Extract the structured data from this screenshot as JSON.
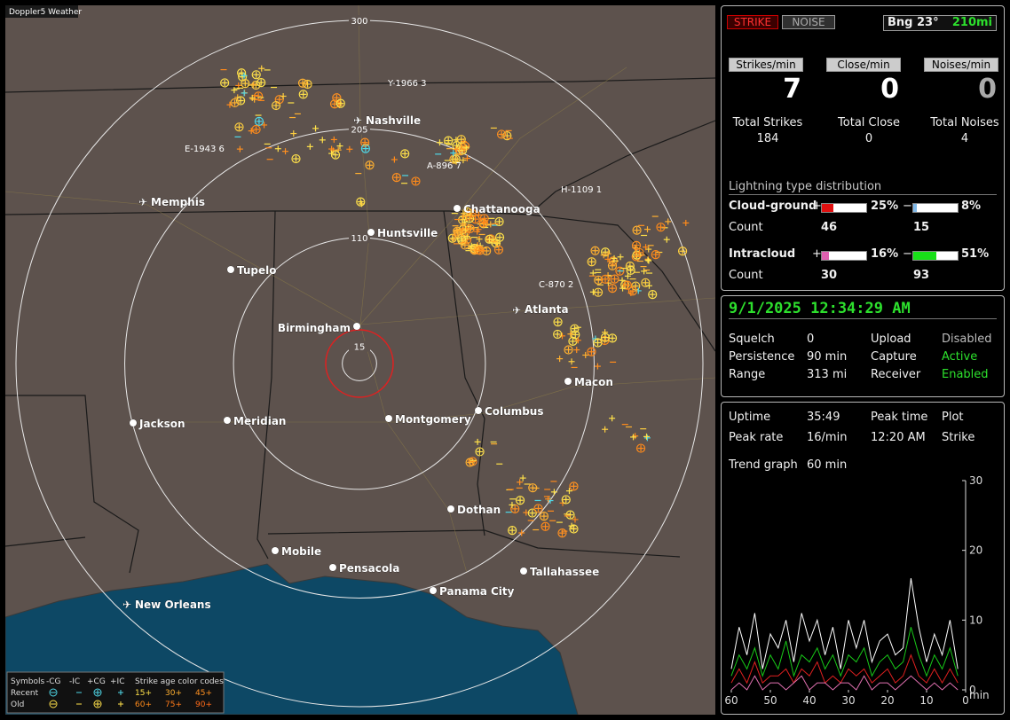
{
  "map": {
    "title": "Doppler5 Weather",
    "rings": [
      15,
      110,
      205,
      300
    ],
    "cities": [
      "Nashville",
      "Memphis",
      "Chattanooga",
      "Huntsville",
      "Tupelo",
      "Atlanta",
      "Birmingham",
      "Macon",
      "Montgomery",
      "Columbus",
      "Jackson",
      "Meridian",
      "Dothan",
      "Mobile",
      "Pensacola",
      "Tallahassee",
      "Panama City",
      "New Orleans"
    ],
    "storms": [
      "Y-1966 3",
      "E-1943 6",
      "A-896 7",
      "H-1109 1",
      "C-870 2"
    ],
    "legend": {
      "symbols": "Symbols",
      "neg_cg": "-CG",
      "neg_ic": "-IC",
      "pos_cg": "+CG",
      "pos_ic": "+IC",
      "age_title": "Strike age color codes",
      "recent": "Recent",
      "old": "Old",
      "ages": [
        "15+",
        "30+",
        "45+",
        "60+",
        "75+",
        "90+"
      ]
    }
  },
  "panel": {
    "strike_button": "STRIKE",
    "noise_button": "NOISE",
    "bearing": "Bng 23°",
    "distance": "210mi",
    "rates": [
      {
        "label": "Strikes/min",
        "value": 7
      },
      {
        "label": "Close/min",
        "value": 0
      },
      {
        "label": "Noises/min",
        "value": 0
      }
    ],
    "totals": [
      {
        "label": "Total Strikes",
        "value": 184
      },
      {
        "label": "Total Close",
        "value": 0
      },
      {
        "label": "Total Noises",
        "value": 4
      }
    ],
    "distribution": {
      "title": "Lightning type distribution",
      "count_label": "Count",
      "rows": [
        {
          "label": "Cloud-ground",
          "plus": "+",
          "minus": "−",
          "pos": {
            "value": 25,
            "label": "25%"
          },
          "neg": {
            "value": 8,
            "label": "8%"
          },
          "pos_count": 46,
          "neg_count": 15
        },
        {
          "label": "Intracloud",
          "plus": "+",
          "minus": "−",
          "pos": {
            "value": 16,
            "label": "16%"
          },
          "neg": {
            "value": 51,
            "label": "51%"
          },
          "pos_count": 30,
          "neg_count": 93
        }
      ]
    },
    "datetime": "9/1/2025 12:34:29 AM",
    "settings": [
      [
        "Squelch",
        "0",
        "Upload",
        "Disabled"
      ],
      [
        "Persistence",
        "90 min",
        "Capture",
        "Active"
      ],
      [
        "Range",
        "313 mi",
        "Receiver",
        "Enabled"
      ]
    ],
    "stats": [
      [
        "Uptime",
        "35:49",
        "Peak time",
        "Plot"
      ],
      [
        "Peak rate",
        "16/min",
        "12:20 AM",
        "Strike"
      ]
    ],
    "trend_label": "Trend graph",
    "trend_span": "60 min"
  },
  "chart_data": {
    "type": "line",
    "xlabel": "min",
    "x": [
      60,
      58,
      56,
      54,
      52,
      50,
      48,
      46,
      44,
      42,
      40,
      38,
      36,
      34,
      32,
      30,
      28,
      26,
      24,
      22,
      20,
      18,
      16,
      14,
      12,
      10,
      8,
      6,
      4,
      2
    ],
    "series": [
      {
        "color": "#ffffff",
        "values": [
          3,
          9,
          5,
          11,
          3,
          8,
          6,
          10,
          4,
          11,
          7,
          10,
          5,
          9,
          3,
          10,
          6,
          10,
          4,
          7,
          8,
          5,
          6,
          16,
          9,
          4,
          8,
          5,
          10,
          3
        ]
      },
      {
        "color": "#18c818",
        "values": [
          2,
          5,
          3,
          6,
          2,
          5,
          3,
          7,
          2,
          5,
          4,
          6,
          3,
          5,
          2,
          5,
          4,
          6,
          2,
          4,
          5,
          3,
          4,
          9,
          5,
          2,
          5,
          3,
          6,
          2
        ]
      },
      {
        "color": "#e02020",
        "values": [
          1,
          3,
          1,
          4,
          1,
          2,
          2,
          3,
          1,
          3,
          2,
          4,
          1,
          2,
          1,
          3,
          2,
          3,
          1,
          2,
          3,
          1,
          2,
          5,
          2,
          1,
          3,
          1,
          3,
          1
        ]
      },
      {
        "color": "#e070b0",
        "values": [
          0,
          1,
          0,
          2,
          0,
          1,
          1,
          0,
          1,
          2,
          0,
          1,
          1,
          0,
          1,
          1,
          0,
          2,
          0,
          1,
          1,
          0,
          1,
          2,
          1,
          0,
          1,
          0,
          1,
          0
        ]
      }
    ],
    "xlim": [
      60,
      0
    ],
    "ylim": [
      0,
      30
    ],
    "xticks": [
      60,
      50,
      40,
      30,
      20,
      10,
      0
    ],
    "yticks": [
      0,
      10,
      20,
      30
    ]
  }
}
